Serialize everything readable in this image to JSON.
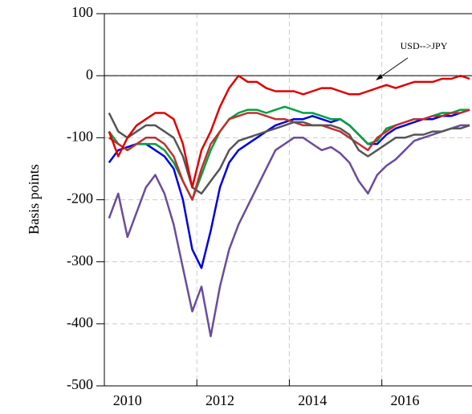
{
  "chart_data": {
    "type": "line",
    "y_label": "Basis points",
    "annotation": "USD-->JPY",
    "x": [
      2010.1,
      2010.3,
      2010.5,
      2010.7,
      2010.9,
      2011.1,
      2011.3,
      2011.5,
      2011.7,
      2011.9,
      2012.1,
      2012.3,
      2012.5,
      2012.7,
      2012.9,
      2013.1,
      2013.3,
      2013.5,
      2013.7,
      2013.9,
      2014.1,
      2014.3,
      2014.5,
      2014.7,
      2014.9,
      2015.1,
      2015.3,
      2015.5,
      2015.7,
      2015.9,
      2016.1,
      2016.3,
      2016.5,
      2016.7,
      2016.9,
      2017.1,
      2017.3,
      2017.5,
      2017.7,
      2017.9
    ],
    "series": [
      {
        "color": "#6a4c9c",
        "values": [
          -230,
          -190,
          -260,
          -220,
          -180,
          -160,
          -190,
          -240,
          -310,
          -380,
          -340,
          -420,
          -340,
          -280,
          -240,
          -210,
          -180,
          -150,
          -120,
          -110,
          -100,
          -100,
          -110,
          -120,
          -115,
          -125,
          -140,
          -170,
          -190,
          -160,
          -145,
          -135,
          -120,
          -105,
          -100,
          -95,
          -90,
          -85,
          -80,
          -80
        ]
      },
      {
        "color": "#0000e0",
        "values": [
          -140,
          -120,
          -115,
          -110,
          -110,
          -120,
          -130,
          -150,
          -200,
          -280,
          -310,
          -250,
          -180,
          -140,
          -120,
          -110,
          -100,
          -90,
          -80,
          -75,
          -70,
          -70,
          -65,
          -70,
          -75,
          -70,
          -80,
          -95,
          -110,
          -110,
          -95,
          -85,
          -80,
          -75,
          -70,
          -70,
          -65,
          -65,
          -60,
          -55
        ]
      },
      {
        "color": "#00a040",
        "values": [
          -90,
          -110,
          -120,
          -110,
          -110,
          -110,
          -120,
          -140,
          -170,
          -200,
          -160,
          -120,
          -90,
          -70,
          -60,
          -55,
          -55,
          -60,
          -55,
          -50,
          -55,
          -60,
          -60,
          -65,
          -70,
          -70,
          -80,
          -95,
          -110,
          -105,
          -85,
          -80,
          -75,
          -70,
          -70,
          -65,
          -60,
          -60,
          -55,
          -55
        ]
      },
      {
        "color": "#c03030",
        "values": [
          -100,
          -110,
          -120,
          -110,
          -100,
          -100,
          -110,
          -130,
          -170,
          -200,
          -150,
          -110,
          -90,
          -70,
          -65,
          -60,
          -60,
          -65,
          -70,
          -70,
          -75,
          -80,
          -80,
          -80,
          -85,
          -90,
          -100,
          -110,
          -120,
          -100,
          -90,
          -80,
          -75,
          -70,
          -70,
          -65,
          -65,
          -60,
          -60,
          -55
        ]
      },
      {
        "color": "#555555",
        "values": [
          -60,
          -90,
          -100,
          -90,
          -80,
          -80,
          -90,
          -100,
          -130,
          -180,
          -190,
          -170,
          -150,
          -120,
          -105,
          -100,
          -95,
          -90,
          -85,
          -80,
          -75,
          -75,
          -80,
          -80,
          -80,
          -85,
          -95,
          -120,
          -130,
          -120,
          -110,
          -100,
          -100,
          -95,
          -95,
          -90,
          -90,
          -85,
          -85,
          -80
        ]
      },
      {
        "color": "#e00000",
        "values": [
          -90,
          -130,
          -100,
          -80,
          -70,
          -60,
          -60,
          -70,
          -110,
          -180,
          -120,
          -90,
          -50,
          -20,
          0,
          -10,
          -10,
          -20,
          -25,
          -25,
          -25,
          -30,
          -25,
          -20,
          -20,
          -25,
          -30,
          -30,
          -25,
          -20,
          -15,
          -20,
          -15,
          -10,
          -10,
          -10,
          -5,
          -5,
          0,
          -5
        ]
      }
    ],
    "xlim": [
      2010,
      2017.95
    ],
    "xticks": [
      {
        "value": 2010.5,
        "label": "2010"
      },
      {
        "value": 2012.5,
        "label": "2012"
      },
      {
        "value": 2014.5,
        "label": "2014"
      },
      {
        "value": 2016.5,
        "label": "2016"
      }
    ],
    "xgrid": [
      2012,
      2014,
      2016
    ],
    "ylim": [
      -500,
      100
    ],
    "yticks": [
      -500,
      -400,
      -300,
      -200,
      -100,
      0,
      100
    ],
    "hline": 0,
    "grid": true
  }
}
